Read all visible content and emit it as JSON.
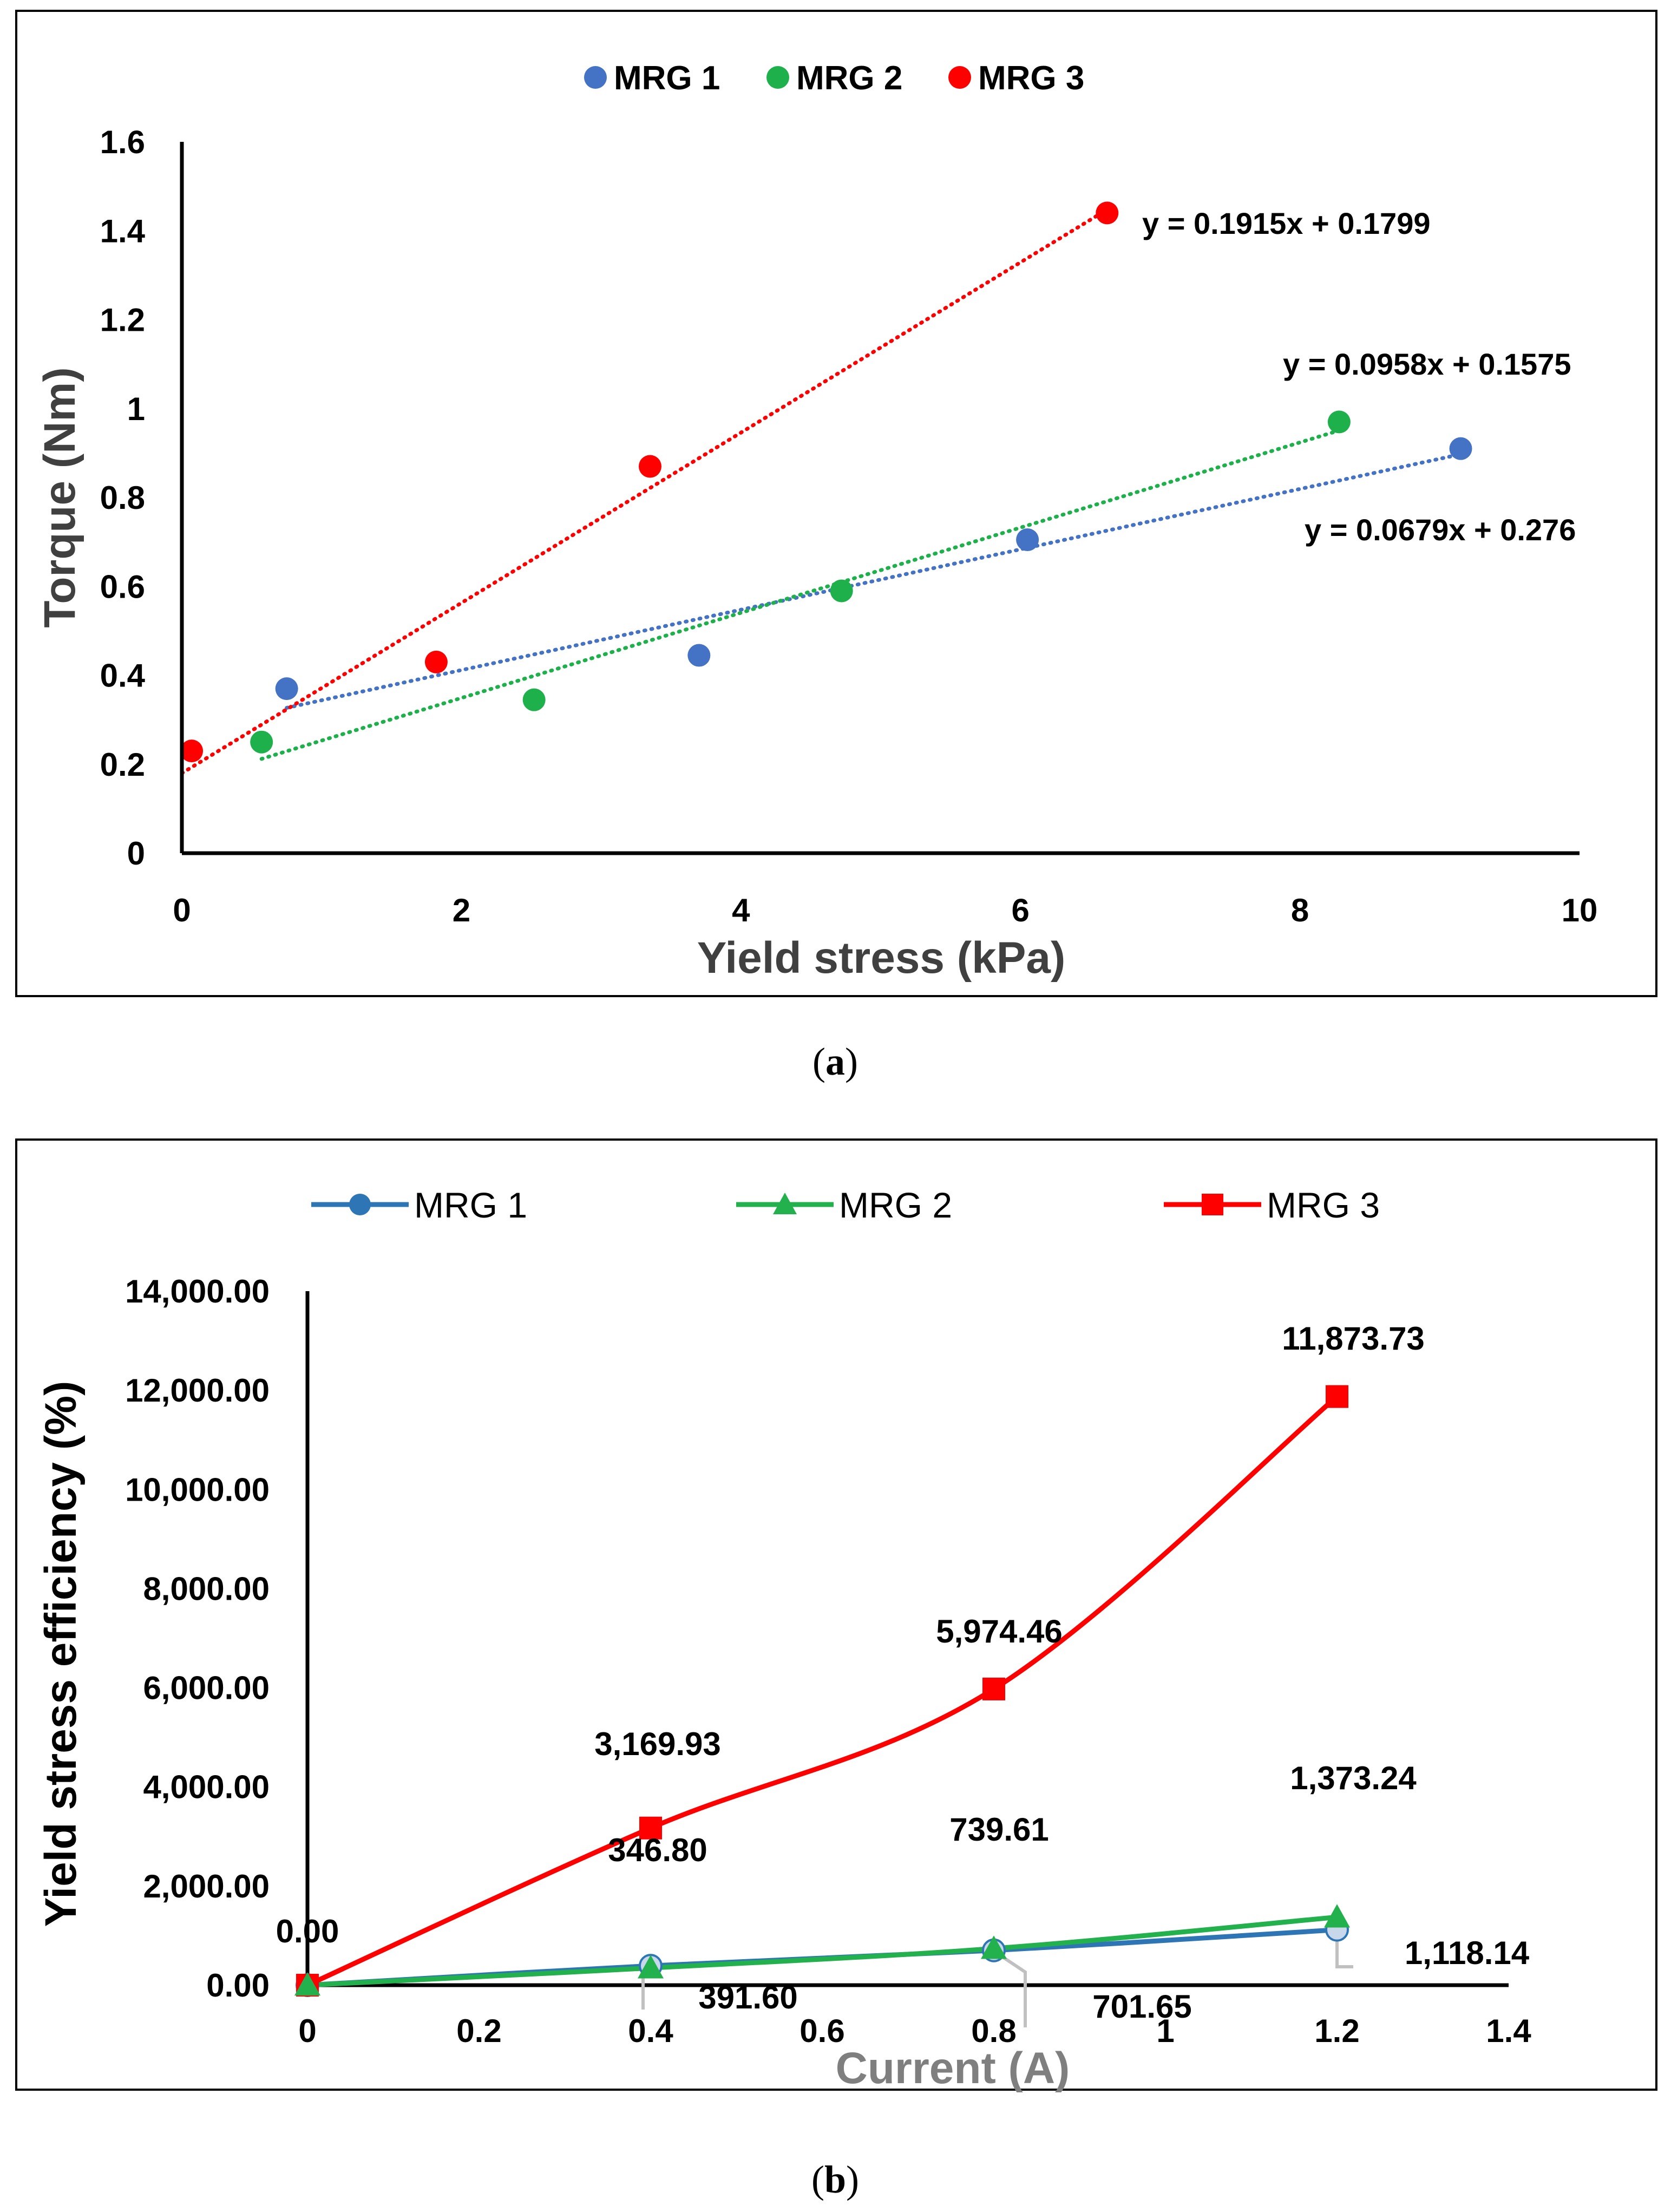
{
  "chart_data": [
    {
      "type": "scatter",
      "panel": "(a)",
      "caption_letter": "a",
      "title": "",
      "xlabel": "Yield stress (kPa)",
      "ylabel": "Torque (Nm)",
      "xlim": [
        0,
        10
      ],
      "ylim": [
        0,
        1.6
      ],
      "x_ticks": [
        "0",
        "2",
        "4",
        "6",
        "8",
        "10"
      ],
      "y_ticks": [
        "0",
        "0.2",
        "0.4",
        "0.6",
        "0.8",
        "1",
        "1.2",
        "1.4",
        "1.6"
      ],
      "grid": false,
      "legend_position": "top-center",
      "series": [
        {
          "name": "MRG 1",
          "color": "#4472c4",
          "x": [
            0.75,
            3.7,
            6.05,
            9.15
          ],
          "y": [
            0.37,
            0.445,
            0.705,
            0.91
          ],
          "trendline": {
            "slope": 0.0679,
            "intercept": 0.276,
            "x_range": [
              0.75,
              9.15
            ],
            "equation": "y = 0.0679x + 0.276"
          }
        },
        {
          "name": "MRG 2",
          "color": "#1eb04b",
          "x": [
            0.57,
            2.52,
            4.72,
            8.28
          ],
          "y": [
            0.25,
            0.345,
            0.59,
            0.97
          ],
          "trendline": {
            "slope": 0.0958,
            "intercept": 0.1575,
            "x_range": [
              0.57,
              8.28
            ],
            "equation": "y = 0.0958x + 0.1575"
          }
        },
        {
          "name": "MRG 3",
          "color": "#ff0000",
          "x": [
            0.07,
            1.82,
            3.35,
            6.62
          ],
          "y": [
            0.23,
            0.43,
            0.87,
            1.44
          ],
          "trendline": {
            "slope": 0.1915,
            "intercept": 0.1799,
            "x_range": [
              0.0,
              6.62
            ],
            "equation": "y = 0.1915x + 0.1799"
          }
        }
      ]
    },
    {
      "type": "line",
      "panel": "(b)",
      "caption_letter": "b",
      "title": "",
      "xlabel": "Current (A)",
      "ylabel": "Yield stress efficiency (%)",
      "xlim": [
        0,
        1.4
      ],
      "ylim": [
        0,
        14000
      ],
      "x_ticks": [
        "0",
        "0.2",
        "0.4",
        "0.6",
        "0.8",
        "1",
        "1.2",
        "1.4"
      ],
      "y_ticks": [
        "0.00",
        "2,000.00",
        "4,000.00",
        "6,000.00",
        "8,000.00",
        "10,000.00",
        "12,000.00",
        "14,000.00"
      ],
      "grid": false,
      "legend_position": "top",
      "x": [
        0,
        0.4,
        0.8,
        1.2
      ],
      "series": [
        {
          "name": "MRG 1",
          "color": "#2e75b6",
          "marker": "circle",
          "values": [
            0,
            391.6,
            701.65,
            1118.14
          ],
          "labels": [
            "",
            "391.60",
            "701.65",
            "1,118.14"
          ]
        },
        {
          "name": "MRG 2",
          "color": "#22b14c",
          "marker": "triangle",
          "values": [
            0,
            346.8,
            739.61,
            1373.24
          ],
          "labels": [
            "",
            "346.80",
            "739.61",
            "1,373.24"
          ]
        },
        {
          "name": "MRG 3",
          "color": "#ff0000",
          "marker": "square",
          "values": [
            0,
            3169.93,
            5974.46,
            11873.73
          ],
          "labels": [
            "0.00",
            "3,169.93",
            "5,974.46",
            "11,873.73"
          ]
        }
      ]
    }
  ],
  "captions": {
    "a": "a",
    "b": "b"
  }
}
